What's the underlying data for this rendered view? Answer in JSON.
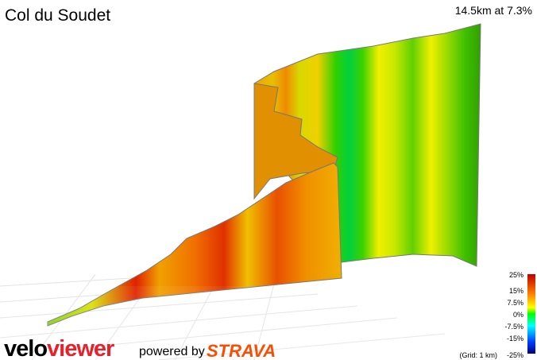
{
  "header": {
    "title": "Col du Soudet",
    "summary": "14.5km at 7.3%"
  },
  "legend": {
    "labels": [
      "25%",
      "15%",
      "7.5%",
      "0%",
      "-7.5%",
      "-15%",
      "-25%"
    ],
    "grid_note": "(Grid: 1 km)"
  },
  "footer": {
    "brand_prefix": "velo",
    "brand_suffix": "viewer",
    "powered_by": "powered by",
    "strava": "STRAVA"
  }
}
